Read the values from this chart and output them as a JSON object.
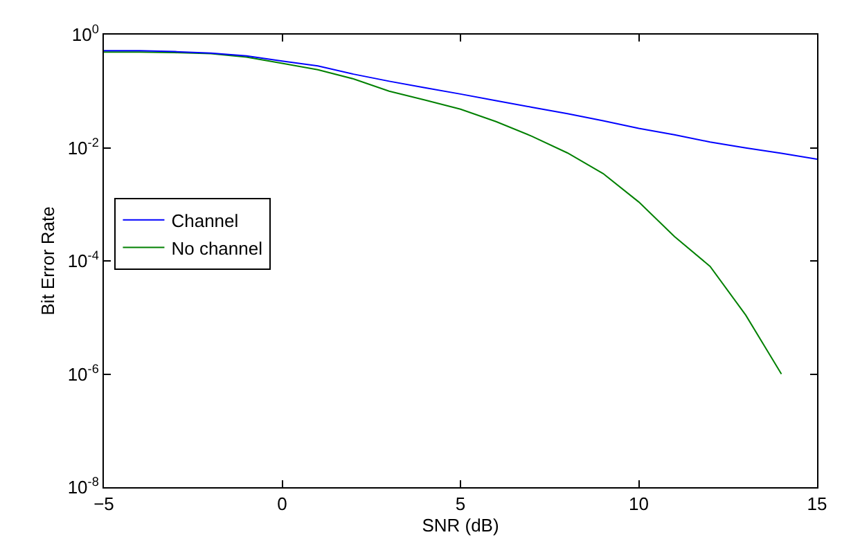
{
  "chart_data": {
    "type": "line",
    "xlabel": "SNR (dB)",
    "ylabel": "Bit Error Rate",
    "x": [
      -5,
      -4,
      -3,
      -2,
      -1,
      0,
      1,
      2,
      3,
      4,
      5,
      6,
      7,
      8,
      9,
      10,
      11,
      12,
      13,
      14,
      15
    ],
    "series": [
      {
        "name": "Channel",
        "color": "#0000ff",
        "values": [
          0.52,
          0.52,
          0.5,
          0.47,
          0.42,
          0.34,
          0.28,
          0.2,
          0.15,
          0.115,
          0.089,
          0.068,
          0.052,
          0.04,
          0.03,
          0.022,
          0.017,
          0.0126,
          0.0099,
          0.008,
          0.0063
        ]
      },
      {
        "name": "No channel",
        "color": "#008000",
        "values": [
          0.49,
          0.49,
          0.48,
          0.46,
          0.4,
          0.31,
          0.24,
          0.165,
          0.1,
          0.07,
          0.048,
          0.029,
          0.016,
          0.0081,
          0.0035,
          0.0011,
          0.00027,
          8e-05,
          1.1e-05,
          1e-06,
          null
        ]
      }
    ],
    "xlim": [
      -5,
      15
    ],
    "xticks": [
      -5,
      0,
      5,
      10,
      15
    ],
    "ylim": [
      1e-08,
      1
    ],
    "yticks": [
      {
        "value": 1e-08,
        "label": "10$^{-8}$"
      },
      {
        "value": 1e-06,
        "label": "10$^{-6}$"
      },
      {
        "value": 0.0001,
        "label": "10$^{-4}$"
      },
      {
        "value": 0.01,
        "label": "10$^{-2}$"
      },
      {
        "value": 1,
        "label": "10$^{0}$"
      }
    ],
    "log": "y",
    "legend": "left",
    "marker": "none",
    "line_style": "solid"
  }
}
